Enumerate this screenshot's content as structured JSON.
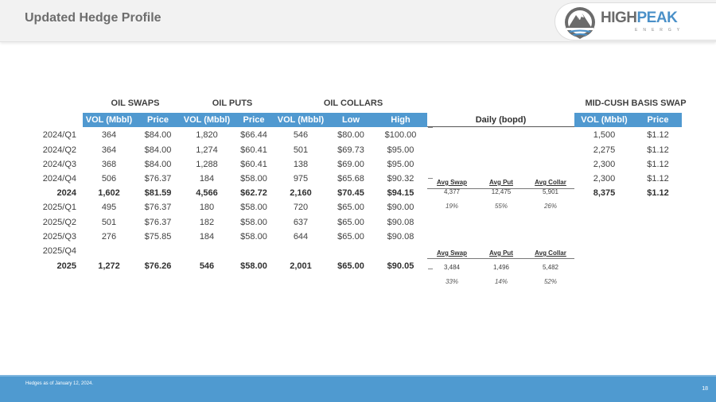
{
  "header": {
    "title": "Updated Hedge Profile",
    "logo": {
      "high": "HIGH",
      "peak": "PEAK",
      "sub": "ENERGY"
    }
  },
  "groups": {
    "oil_swaps": "OIL SWAPS",
    "oil_puts": "OIL PUTS",
    "oil_collars": "OIL COLLARS",
    "basis_swap": "MID-CUSH BASIS SWAP"
  },
  "columns": {
    "swap_vol": "VOL (Mbbl)",
    "swap_price": "Price",
    "put_vol": "VOL (Mbbl)",
    "put_price": "Price",
    "collar_vol": "VOL (Mbbl)",
    "collar_low": "Low",
    "collar_high": "High",
    "daily": "Daily (bopd)",
    "basis_vol": "VOL (Mbbl)",
    "basis_price": "Price"
  },
  "rows": [
    {
      "label": "2024/Q1",
      "swap_vol": "364",
      "swap_price": "$84.00",
      "put_vol": "1,820",
      "put_price": "$66.44",
      "collar_vol": "546",
      "collar_low": "$80.00",
      "collar_high": "$100.00",
      "basis_vol": "1,500",
      "basis_price": "$1.12"
    },
    {
      "label": "2024/Q2",
      "swap_vol": "364",
      "swap_price": "$84.00",
      "put_vol": "1,274",
      "put_price": "$60.41",
      "collar_vol": "501",
      "collar_low": "$69.73",
      "collar_high": "$95.00",
      "basis_vol": "2,275",
      "basis_price": "$1.12"
    },
    {
      "label": "2024/Q3",
      "swap_vol": "368",
      "swap_price": "$84.00",
      "put_vol": "1,288",
      "put_price": "$60.41",
      "collar_vol": "138",
      "collar_low": "$69.00",
      "collar_high": "$95.00",
      "basis_vol": "2,300",
      "basis_price": "$1.12"
    },
    {
      "label": "2024/Q4",
      "swap_vol": "506",
      "swap_price": "$76.37",
      "put_vol": "184",
      "put_price": "$58.00",
      "collar_vol": "975",
      "collar_low": "$65.68",
      "collar_high": "$90.32",
      "basis_vol": "2,300",
      "basis_price": "$1.12"
    },
    {
      "label": "2024",
      "bold": true,
      "swap_vol": "1,602",
      "swap_price": "$81.59",
      "put_vol": "4,566",
      "put_price": "$62.72",
      "collar_vol": "2,160",
      "collar_low": "$70.45",
      "collar_high": "$94.15",
      "basis_vol": "8,375",
      "basis_price": "$1.12"
    },
    {
      "label": "2025/Q1",
      "swap_vol": "495",
      "swap_price": "$76.37",
      "put_vol": "180",
      "put_price": "$58.00",
      "collar_vol": "720",
      "collar_low": "$65.00",
      "collar_high": "$90.00",
      "basis_vol": "",
      "basis_price": ""
    },
    {
      "label": "2025/Q2",
      "swap_vol": "501",
      "swap_price": "$76.37",
      "put_vol": "182",
      "put_price": "$58.00",
      "collar_vol": "637",
      "collar_low": "$65.00",
      "collar_high": "$90.08",
      "basis_vol": "",
      "basis_price": ""
    },
    {
      "label": "2025/Q3",
      "swap_vol": "276",
      "swap_price": "$75.85",
      "put_vol": "184",
      "put_price": "$58.00",
      "collar_vol": "644",
      "collar_low": "$65.00",
      "collar_high": "$90.08",
      "basis_vol": "",
      "basis_price": ""
    },
    {
      "label": "2025/Q4",
      "swap_vol": "",
      "swap_price": "",
      "put_vol": "",
      "put_price": "",
      "collar_vol": "",
      "collar_low": "",
      "collar_high": "",
      "basis_vol": "",
      "basis_price": ""
    },
    {
      "label": "2025",
      "bold": true,
      "swap_vol": "1,272",
      "swap_price": "$76.26",
      "put_vol": "546",
      "put_price": "$58.00",
      "collar_vol": "2,001",
      "collar_low": "$65.00",
      "collar_high": "$90.05",
      "basis_vol": "",
      "basis_price": ""
    }
  ],
  "daily_2024": {
    "headers": [
      "Avg Swap",
      "Avg Put",
      "Avg Collar"
    ],
    "values": [
      "4,377",
      "12,475",
      "5,901"
    ],
    "pcts": [
      "19%",
      "55%",
      "26%"
    ]
  },
  "daily_2025": {
    "headers": [
      "Avg Swap",
      "Avg Put",
      "Avg Collar"
    ],
    "values": [
      "3,484",
      "1,496",
      "5,482"
    ],
    "pcts": [
      "33%",
      "14%",
      "52%"
    ]
  },
  "footer": {
    "note": "Hedges as of January 12, 2024.",
    "page": "18"
  }
}
